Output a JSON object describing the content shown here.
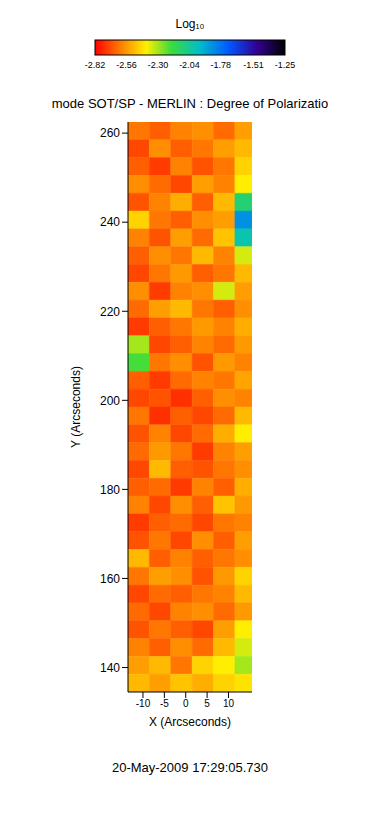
{
  "chart_data": {
    "type": "heatmap",
    "title": "mode SOT/SP - MERLIN : Degree of Polarizatio",
    "annotation": "20-May-2009 17:29:05.730",
    "x_label": "X (Arcseconds)",
    "y_label": "Y (Arcseconds)",
    "xlim": [
      -13.5,
      15.5
    ],
    "xticks": [
      -10,
      -5,
      0,
      5,
      10
    ],
    "ylim": [
      134.5,
      262.5
    ],
    "yticks": [
      140,
      160,
      180,
      200,
      220,
      240,
      260
    ],
    "grid": false,
    "x_edges": [
      -13.5,
      -8.5,
      -3.5,
      1.5,
      6.5,
      11.5,
      15.5
    ],
    "y_edges": [
      262.5,
      258.5,
      254.5,
      250.5,
      246.5,
      242.5,
      238.5,
      234.5,
      230.5,
      226.5,
      222.5,
      218.5,
      214.5,
      210.5,
      206.5,
      202.5,
      198.5,
      194.5,
      190.5,
      186.5,
      182.5,
      178.5,
      174.5,
      170.5,
      166.5,
      162.5,
      158.5,
      154.5,
      150.5,
      146.5,
      142.5,
      138.5,
      134.5
    ],
    "cells": [
      [
        -2.62,
        -2.66,
        -2.6,
        -2.58,
        -2.64,
        -2.55
      ],
      [
        -2.7,
        -2.58,
        -2.66,
        -2.62,
        -2.55,
        -2.5
      ],
      [
        -2.66,
        -2.72,
        -2.6,
        -2.68,
        -2.62,
        -2.45
      ],
      [
        -2.58,
        -2.64,
        -2.7,
        -2.55,
        -2.6,
        -2.4
      ],
      [
        -2.68,
        -2.6,
        -2.52,
        -2.66,
        -2.5,
        -2.1
      ],
      [
        -2.45,
        -2.62,
        -2.66,
        -2.58,
        -2.55,
        -1.85
      ],
      [
        -2.6,
        -2.68,
        -2.55,
        -2.64,
        -2.48,
        -2.0
      ],
      [
        -2.66,
        -2.58,
        -2.62,
        -2.5,
        -2.6,
        -2.35
      ],
      [
        -2.7,
        -2.62,
        -2.56,
        -2.66,
        -2.62,
        -2.5
      ],
      [
        -2.58,
        -2.72,
        -2.6,
        -2.58,
        -2.35,
        -2.55
      ],
      [
        -2.64,
        -2.55,
        -2.5,
        -2.62,
        -2.66,
        -2.58
      ],
      [
        -2.72,
        -2.66,
        -2.62,
        -2.56,
        -2.6,
        -2.52
      ],
      [
        -2.3,
        -2.7,
        -2.66,
        -2.6,
        -2.64,
        -2.56
      ],
      [
        -2.2,
        -2.62,
        -2.58,
        -2.68,
        -2.56,
        -2.6
      ],
      [
        -2.66,
        -2.72,
        -2.64,
        -2.6,
        -2.62,
        -2.54
      ],
      [
        -2.7,
        -2.68,
        -2.74,
        -2.66,
        -2.58,
        -2.6
      ],
      [
        -2.62,
        -2.74,
        -2.66,
        -2.7,
        -2.64,
        -2.5
      ],
      [
        -2.68,
        -2.6,
        -2.7,
        -2.64,
        -2.52,
        -2.4
      ],
      [
        -2.64,
        -2.56,
        -2.62,
        -2.72,
        -2.6,
        -2.55
      ],
      [
        -2.7,
        -2.5,
        -2.66,
        -2.68,
        -2.62,
        -2.58
      ],
      [
        -2.66,
        -2.64,
        -2.72,
        -2.6,
        -2.66,
        -2.52
      ],
      [
        -2.6,
        -2.7,
        -2.58,
        -2.66,
        -2.48,
        -2.56
      ],
      [
        -2.72,
        -2.66,
        -2.64,
        -2.7,
        -2.62,
        -2.6
      ],
      [
        -2.68,
        -2.62,
        -2.7,
        -2.58,
        -2.66,
        -2.55
      ],
      [
        -2.5,
        -2.66,
        -2.6,
        -2.66,
        -2.62,
        -2.58
      ],
      [
        -2.62,
        -2.55,
        -2.58,
        -2.68,
        -2.56,
        -2.45
      ],
      [
        -2.7,
        -2.64,
        -2.66,
        -2.62,
        -2.6,
        -2.5
      ],
      [
        -2.64,
        -2.7,
        -2.6,
        -2.58,
        -2.64,
        -2.56
      ],
      [
        -2.68,
        -2.62,
        -2.66,
        -2.7,
        -2.55,
        -2.4
      ],
      [
        -2.6,
        -2.66,
        -2.58,
        -2.64,
        -2.5,
        -2.35
      ],
      [
        -2.55,
        -2.5,
        -2.62,
        -2.45,
        -2.4,
        -2.3
      ],
      [
        -2.5,
        -2.55,
        -2.48,
        -2.52,
        -2.45,
        -2.42
      ]
    ],
    "colorbar": {
      "label": "Log₁₀",
      "range": [
        -2.82,
        -1.25
      ],
      "ticks": [
        -2.82,
        -2.56,
        -2.3,
        -2.04,
        -1.78,
        -1.51,
        -1.25
      ]
    }
  }
}
